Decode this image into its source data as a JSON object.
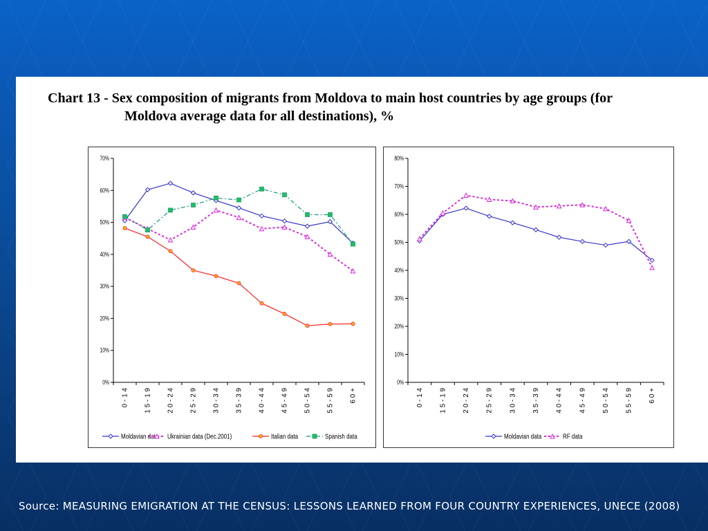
{
  "title_line1": "Chart 13 - Sex composition of migrants from Moldova to main host countries by age groups (for",
  "title_line2": "Moldova average data for all destinations), %",
  "source": "Source: MEASURING EMIGRATION AT THE CENSUS: LESSONS LEARNED FROM FOUR COUNTRY EXPERIENCES, UNECE (2008)",
  "chart_data": [
    {
      "type": "line",
      "title": "",
      "categories": [
        "0-14",
        "15-19",
        "20-24",
        "25-29",
        "30-34",
        "35-39",
        "40-44",
        "45-49",
        "50-54",
        "55-59",
        "60+"
      ],
      "yticks": [
        "0%",
        "10%",
        "20%",
        "30%",
        "40%",
        "50%",
        "60%",
        "70%"
      ],
      "ylim": [
        0,
        70
      ],
      "series": [
        {
          "name": "Moldavian data",
          "color": "#3333cc",
          "marker": "diamond",
          "dash": "",
          "values": [
            50.5,
            60.2,
            62.2,
            59.2,
            56.8,
            54.5,
            52.0,
            50.4,
            48.8,
            50.2,
            43.5
          ]
        },
        {
          "name": "Ukrainian data (Dec.2001)",
          "color": "#e020e0",
          "marker": "triangle",
          "dash": "3,3",
          "values": [
            51.5,
            48.0,
            44.5,
            48.5,
            53.8,
            51.5,
            48.0,
            48.5,
            45.5,
            40.0,
            34.8
          ]
        },
        {
          "name": "Italian data",
          "color": "#ff2020",
          "marker": "circle",
          "dash": "",
          "values": [
            48.2,
            45.5,
            41.0,
            35.0,
            33.2,
            31.0,
            24.7,
            21.4,
            17.7,
            18.2,
            18.3
          ]
        },
        {
          "name": "Spanish data",
          "color": "#169a7a",
          "marker": "square",
          "dash": "6,3,2,3",
          "values": [
            51.8,
            47.6,
            53.8,
            55.4,
            57.6,
            57.0,
            60.4,
            58.6,
            52.4,
            52.4,
            43.2
          ]
        }
      ]
    },
    {
      "type": "line",
      "title": "",
      "categories": [
        "0-14",
        "15-19",
        "20-24",
        "25-29",
        "30-34",
        "35-39",
        "40-44",
        "45-49",
        "50-54",
        "55-59",
        "60+"
      ],
      "yticks": [
        "0%",
        "10%",
        "20%",
        "30%",
        "40%",
        "50%",
        "60%",
        "70%",
        "80%"
      ],
      "ylim": [
        0,
        80
      ],
      "series": [
        {
          "name": "Moldavian data",
          "color": "#3333cc",
          "marker": "diamond",
          "dash": "",
          "values": [
            50.5,
            60.0,
            62.2,
            59.3,
            57.0,
            54.5,
            51.8,
            50.3,
            49.0,
            50.3,
            43.6
          ]
        },
        {
          "name": "RF data",
          "color": "#e020e0",
          "marker": "triangle",
          "dash": "3,3",
          "values": [
            51.3,
            60.5,
            66.8,
            65.3,
            64.8,
            62.6,
            63.0,
            63.4,
            62.0,
            57.8,
            41.0
          ]
        }
      ]
    }
  ]
}
